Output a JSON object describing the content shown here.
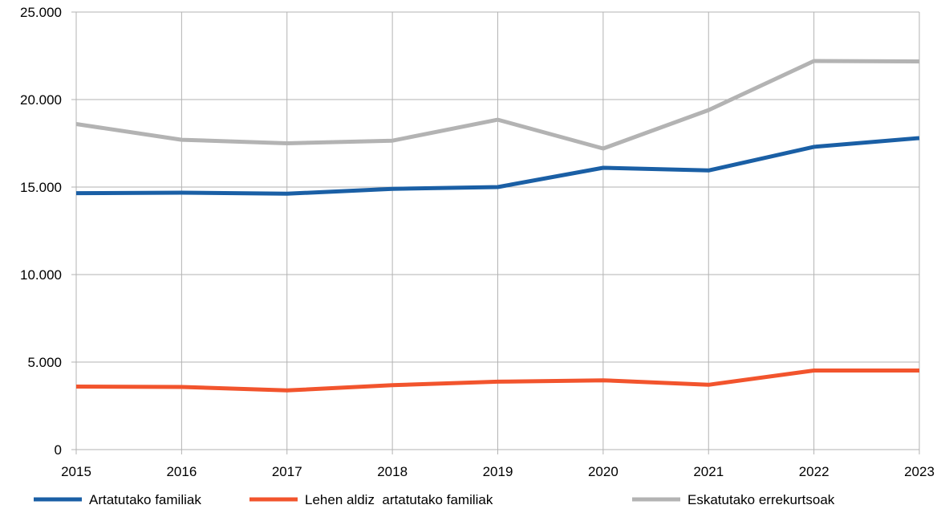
{
  "chart_data": {
    "type": "line",
    "title": "",
    "xlabel": "",
    "ylabel": "",
    "x": [
      "2015",
      "2016",
      "2017",
      "2018",
      "2019",
      "2020",
      "2021",
      "2022",
      "2023"
    ],
    "ylim": [
      0,
      25000
    ],
    "yticks": [
      0,
      5000,
      10000,
      15000,
      20000,
      25000
    ],
    "ytick_labels": [
      "0",
      "5.000",
      "10.000",
      "15.000",
      "20.000",
      "25.000"
    ],
    "grid": true,
    "legend_position": "bottom",
    "series": [
      {
        "name": "Artatutako familiak",
        "color": "#1a5fa5",
        "values": [
          14650,
          14680,
          14620,
          14900,
          15000,
          16100,
          15950,
          17300,
          17800
        ]
      },
      {
        "name": "Lehen aldiz  artatutako familiak",
        "color": "#f2542d",
        "values": [
          3600,
          3580,
          3380,
          3680,
          3880,
          3960,
          3700,
          4520,
          4520
        ]
      },
      {
        "name": "Eskatutako errekurtsoak",
        "color": "#b3b3b3",
        "values": [
          18600,
          17700,
          17500,
          17650,
          18850,
          17200,
          19400,
          22200,
          22180
        ]
      }
    ]
  }
}
